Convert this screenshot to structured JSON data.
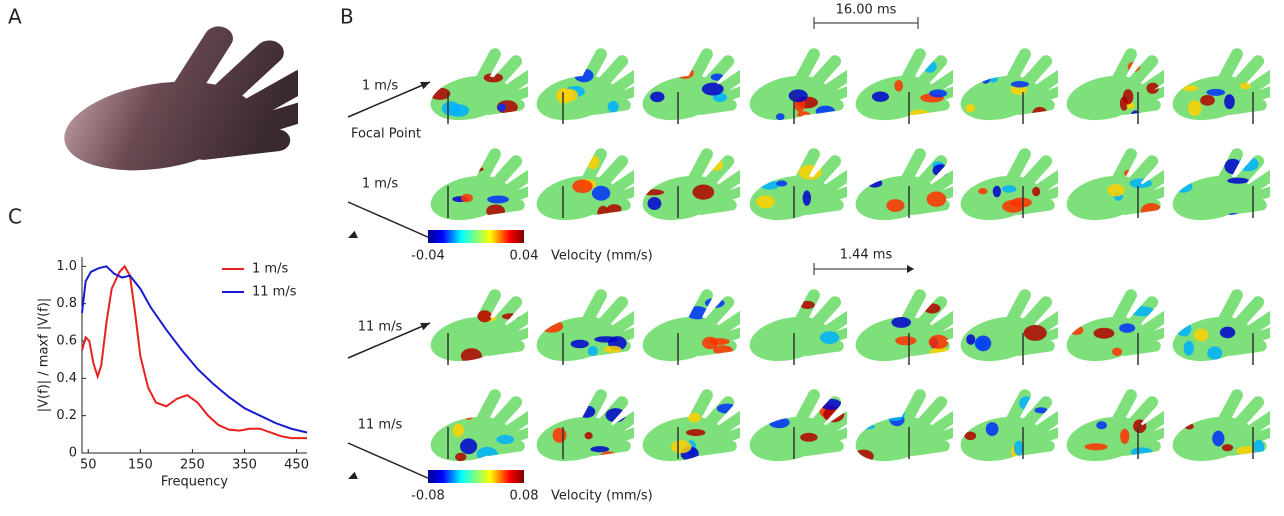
{
  "panels": {
    "a": "A",
    "b": "B",
    "c": "C"
  },
  "panel_b": {
    "top_scale": "16.00 ms",
    "bottom_scale": "1.44 ms",
    "rows": [
      "1 m/s",
      "1 m/s",
      "11 m/s",
      "11 m/s"
    ],
    "focal_point": "Focal Point",
    "colorbar_top": {
      "min": "-0.04",
      "max": "0.04",
      "label": "Velocity  (mm/s)"
    },
    "colorbar_bottom": {
      "min": "-0.08",
      "max": "0.08",
      "label": "Velocity  (mm/s)"
    }
  },
  "chart_data": {
    "type": "line",
    "xlabel": "Frequency",
    "ylabel": "|V(f)| / maxf |V(f)|",
    "xlim": [
      38,
      470
    ],
    "xticks": [
      50,
      150,
      250,
      350,
      450
    ],
    "ylim": [
      0,
      1.05
    ],
    "yticks": [
      0,
      0.2,
      0.4,
      0.6,
      0.8,
      {
        "value": 1,
        "label": "1.0"
      }
    ],
    "legend": "upper right",
    "series": [
      {
        "name": "1 m/s",
        "color": "#e8201f",
        "x": [
          38,
          45,
          52,
          60,
          68,
          75,
          85,
          95,
          110,
          120,
          130,
          140,
          150,
          165,
          180,
          200,
          220,
          240,
          260,
          280,
          300,
          320,
          340,
          360,
          380,
          400,
          420,
          440,
          470
        ],
        "values": [
          0.55,
          0.62,
          0.6,
          0.48,
          0.41,
          0.47,
          0.7,
          0.88,
          0.97,
          1.0,
          0.95,
          0.75,
          0.52,
          0.35,
          0.27,
          0.25,
          0.29,
          0.31,
          0.27,
          0.2,
          0.15,
          0.125,
          0.12,
          0.13,
          0.13,
          0.11,
          0.09,
          0.08,
          0.08
        ]
      },
      {
        "name": "11 m/s",
        "color": "#1a1ad0",
        "x": [
          38,
          45,
          55,
          70,
          85,
          100,
          115,
          130,
          150,
          170,
          200,
          230,
          260,
          290,
          320,
          350,
          380,
          410,
          440,
          470
        ],
        "values": [
          0.75,
          0.92,
          0.97,
          0.99,
          1.0,
          0.96,
          0.94,
          0.95,
          0.88,
          0.78,
          0.66,
          0.55,
          0.45,
          0.37,
          0.3,
          0.24,
          0.2,
          0.16,
          0.13,
          0.11
        ]
      }
    ]
  }
}
